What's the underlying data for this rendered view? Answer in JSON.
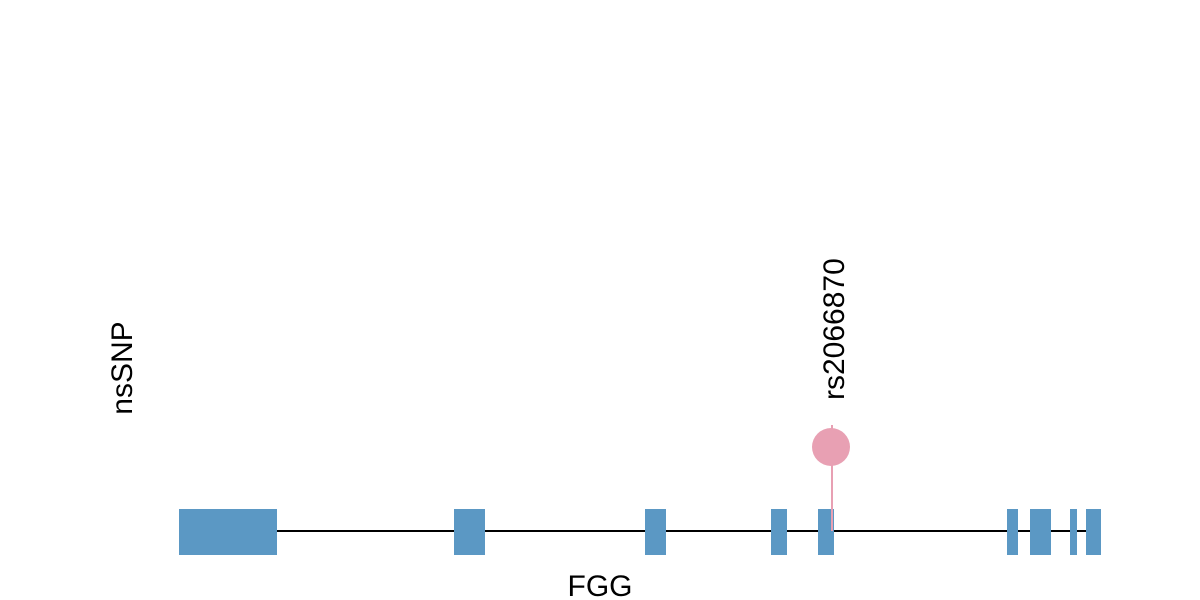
{
  "track": {
    "label": "nsSNP"
  },
  "gene": {
    "label": "FGG"
  },
  "snps": [
    {
      "label": "rs2066870"
    }
  ]
}
